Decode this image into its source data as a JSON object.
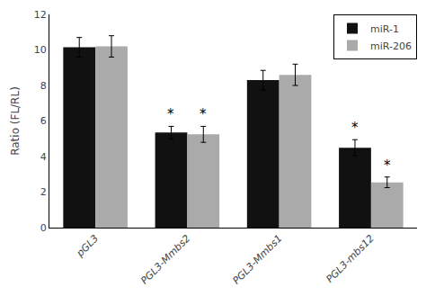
{
  "chart_data": {
    "type": "bar",
    "categories": [
      "pGL3",
      "PGL3-Mmbs2",
      "PGL3-Mmbs1",
      "PGL3-mbs12"
    ],
    "series": [
      {
        "name": "miR-1",
        "color": "#111111",
        "values": [
          10.15,
          5.35,
          8.3,
          4.5
        ],
        "errors": [
          0.55,
          0.35,
          0.55,
          0.45
        ],
        "annotations": [
          null,
          "*",
          null,
          "*"
        ]
      },
      {
        "name": "miR-206",
        "color": "#aaaaaa",
        "values": [
          10.2,
          5.25,
          8.6,
          2.55
        ],
        "errors": [
          0.6,
          0.45,
          0.6,
          0.3
        ],
        "annotations": [
          null,
          "*",
          null,
          "*"
        ]
      }
    ],
    "ylabel": "Ratio (FL/RL)",
    "ylim": [
      0,
      12
    ],
    "yticks": [
      0,
      2,
      4,
      6,
      8,
      10,
      12
    ],
    "grid": false,
    "legend": "upper right"
  }
}
